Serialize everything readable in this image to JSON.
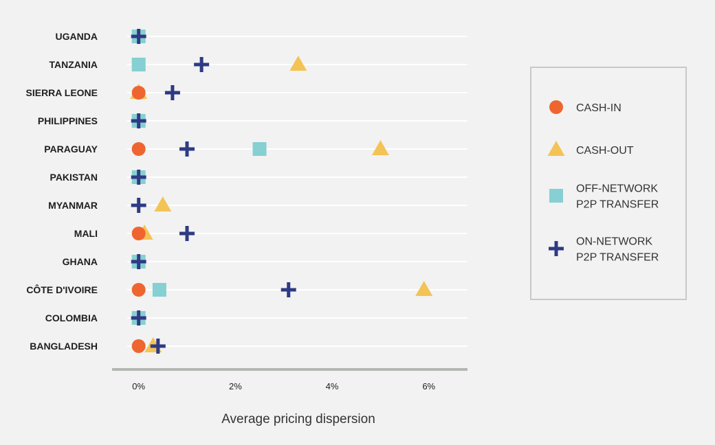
{
  "colors": {
    "background": "#f1f2f1",
    "grid": "#ffffff",
    "axis": "#b4b6b4",
    "cash_in": "#ef6530",
    "cash_out": "#f4c356",
    "off_network": "#86cfd2",
    "on_network": "#2e3a84",
    "legend_border": "#c8c8c8"
  },
  "chart_data": {
    "type": "scatter",
    "categories": [
      "UGANDA",
      "TANZANIA",
      "SIERRA LEONE",
      "PHILIPPINES",
      "PARAGUAY",
      "PAKISTAN",
      "MYANMAR",
      "MALI",
      "GHANA",
      "CÔTE D'IVOIRE",
      "COLOMBIA",
      "BANGLADESH"
    ],
    "xlabel": "Average pricing dispersion",
    "ylabel": "",
    "xlim": [
      -0.55,
      6.8
    ],
    "xticks": [
      0,
      2,
      4,
      6
    ],
    "xtick_labels": [
      "0%",
      "2%",
      "4%",
      "6%"
    ],
    "grid": true,
    "legend": "right",
    "series": [
      {
        "key": "cash_out",
        "name": "CASH-OUT",
        "marker": "triangle",
        "values": [
          null,
          3.3,
          0.0,
          null,
          5.0,
          null,
          0.5,
          0.12,
          null,
          5.9,
          null,
          0.3
        ]
      },
      {
        "key": "off_network",
        "name": "OFF-NETWORK P2P TRANSFER",
        "marker": "square",
        "values": [
          0.0,
          0.0,
          null,
          0.0,
          2.5,
          0.0,
          null,
          null,
          0.0,
          0.43,
          0.0,
          null
        ]
      },
      {
        "key": "cash_in",
        "name": "CASH-IN",
        "marker": "circle",
        "values": [
          null,
          null,
          0.0,
          null,
          0.0,
          null,
          null,
          0.0,
          null,
          0.0,
          null,
          0.0
        ]
      },
      {
        "key": "on_network",
        "name": "ON-NETWORK P2P TRANSFER",
        "marker": "plus",
        "values": [
          0.0,
          1.3,
          0.7,
          0.0,
          1.0,
          0.0,
          0.0,
          1.0,
          0.0,
          3.1,
          0.0,
          0.4
        ]
      }
    ]
  },
  "legend": {
    "items": [
      {
        "key": "cash_in",
        "marker": "circle",
        "lines": [
          "CASH-IN"
        ]
      },
      {
        "key": "cash_out",
        "marker": "triangle",
        "lines": [
          "CASH-OUT"
        ]
      },
      {
        "key": "off_network",
        "marker": "square",
        "lines": [
          "OFF-NETWORK",
          "P2P TRANSFER"
        ]
      },
      {
        "key": "on_network",
        "marker": "plus",
        "lines": [
          "ON-NETWORK",
          "P2P TRANSFER"
        ]
      }
    ]
  }
}
